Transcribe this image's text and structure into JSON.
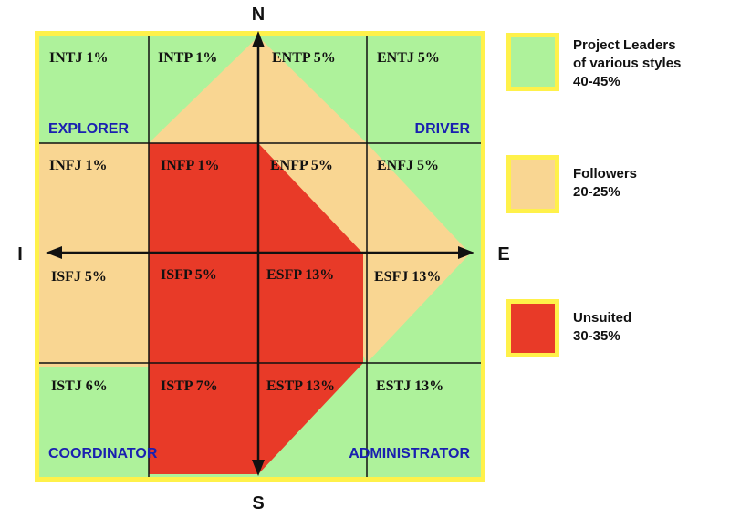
{
  "compass": {
    "north": "N",
    "south": "S",
    "west": "I",
    "east": "E"
  },
  "cells": [
    {
      "label": "INTJ 1%",
      "region": "green"
    },
    {
      "label": "INTP 1%",
      "region": "mixed"
    },
    {
      "label": "ENTP 5%",
      "region": "mixed"
    },
    {
      "label": "ENTJ 5%",
      "region": "green"
    },
    {
      "label": "INFJ 1%",
      "region": "tan"
    },
    {
      "label": "INFP 1%",
      "region": "red"
    },
    {
      "label": "ENFP 5%",
      "region": "mixed"
    },
    {
      "label": "ENFJ 5%",
      "region": "mixed"
    },
    {
      "label": "ISFJ 5%",
      "region": "tan"
    },
    {
      "label": "ISFP 5%",
      "region": "red"
    },
    {
      "label": "ESFP 13%",
      "region": "red"
    },
    {
      "label": "ESFJ 13%",
      "region": "mixed"
    },
    {
      "label": "ISTJ 6%",
      "region": "green"
    },
    {
      "label": "ISTP 7%",
      "region": "red"
    },
    {
      "label": "ESTP 13%",
      "region": "mixed"
    },
    {
      "label": "ESTJ 13%",
      "region": "green"
    }
  ],
  "corners": {
    "top_left": "EXPLORER",
    "top_right": "DRIVER",
    "bottom_left": "COORDINATOR",
    "bottom_right": "ADMINISTRATOR"
  },
  "legend": [
    {
      "lines": [
        "Project Leaders",
        "of various styles",
        "40-45%"
      ],
      "color": "#aef29b"
    },
    {
      "lines": [
        "Followers",
        "20-25%"
      ],
      "color": "#f9d692"
    },
    {
      "lines": [
        "Unsuited",
        "30-35%"
      ],
      "color": "#e83a28"
    }
  ],
  "colors": {
    "green": "#aef29b",
    "tan": "#f9d692",
    "red": "#e83a28",
    "border": "#fff14a",
    "grid": "#111111",
    "corner_text": "#1a20b0"
  }
}
